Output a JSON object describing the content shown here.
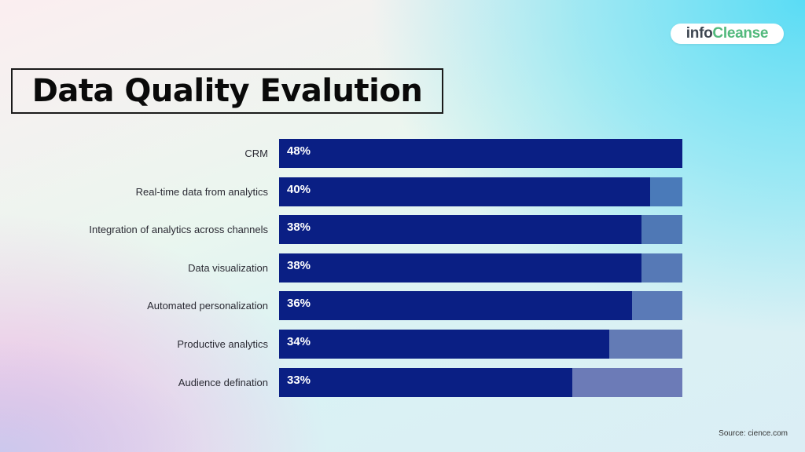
{
  "brand": {
    "logo_part1": "info",
    "logo_part2": "Cleanse",
    "accent_color": "#52b97c"
  },
  "source": "Source: cience.com",
  "chart_data": {
    "type": "bar",
    "orientation": "horizontal",
    "title": "Data Quality Evalution",
    "xlabel": "",
    "ylabel": "",
    "categories": [
      "CRM",
      "Real-time data from analytics",
      "Integration of analytics across channels",
      "Data visualization",
      "Automated personalization",
      "Productive analytics",
      "Audience defination"
    ],
    "values": [
      48,
      40,
      38,
      38,
      36,
      34,
      33
    ],
    "value_labels": [
      "48%",
      "40%",
      "38%",
      "38%",
      "36%",
      "34%",
      "33%"
    ],
    "unit": "%",
    "xlim": [
      0,
      48
    ],
    "grid": false,
    "legend": "none",
    "bar_color": "#0a1f84",
    "track_colors": [
      "#0a1f84",
      "#4a7ab9",
      "#4f78b5",
      "#5679b6",
      "#5a7ab7",
      "#637bb5",
      "#6c7bb7"
    ]
  }
}
